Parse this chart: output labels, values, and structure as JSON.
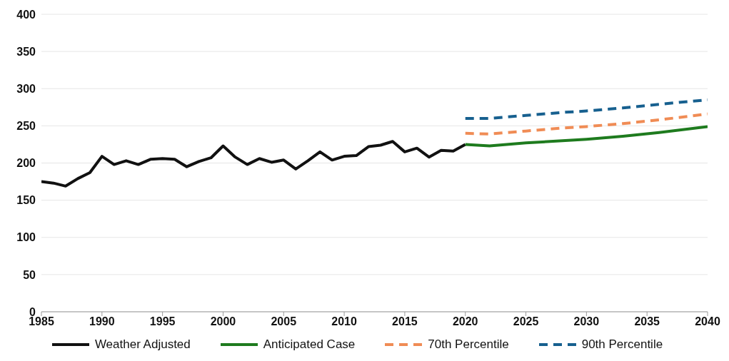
{
  "chart_data": {
    "type": "line",
    "x": [
      1985,
      1986,
      1987,
      1988,
      1989,
      1990,
      1991,
      1992,
      1993,
      1994,
      1995,
      1996,
      1997,
      1998,
      1999,
      2000,
      2001,
      2002,
      2003,
      2004,
      2005,
      2006,
      2007,
      2008,
      2009,
      2010,
      2011,
      2012,
      2013,
      2014,
      2015,
      2016,
      2017,
      2018,
      2019,
      2020
    ],
    "series": [
      {
        "name": "Weather Adjusted",
        "color": "#111111",
        "line_style": "solid",
        "values": [
          175,
          173,
          169,
          179,
          187,
          209,
          198,
          203,
          198,
          205,
          206,
          205,
          195,
          202,
          207,
          223,
          208,
          198,
          206,
          201,
          204,
          192,
          203,
          215,
          204,
          209,
          210,
          222,
          224,
          229,
          215,
          220,
          208,
          217,
          216,
          225
        ]
      },
      {
        "name": "Anticipated Case",
        "color": "#1e7b1e",
        "line_style": "solid",
        "x": [
          2020,
          2022,
          2025,
          2028,
          2030,
          2033,
          2036,
          2040
        ],
        "values": [
          225,
          223,
          227,
          230,
          232,
          236,
          241,
          249
        ]
      },
      {
        "name": "70th Percentile",
        "color": "#f08c55",
        "line_style": "dashed",
        "x": [
          2020,
          2022,
          2025,
          2028,
          2030,
          2033,
          2036,
          2040
        ],
        "values": [
          240,
          239,
          243,
          247,
          249,
          253,
          258,
          266
        ]
      },
      {
        "name": "90th Percentile",
        "color": "#17608f",
        "line_style": "dashed",
        "x": [
          2020,
          2022,
          2025,
          2028,
          2030,
          2033,
          2036,
          2040
        ],
        "values": [
          260,
          260,
          264,
          268,
          270,
          274,
          279,
          285
        ]
      }
    ],
    "xlim": [
      1985,
      2040
    ],
    "xticks": [
      1985,
      1990,
      1995,
      2000,
      2005,
      2010,
      2015,
      2020,
      2025,
      2030,
      2035,
      2040
    ],
    "ylim": [
      0,
      400
    ],
    "yticks": [
      0,
      50,
      100,
      150,
      200,
      250,
      300,
      350,
      400
    ],
    "grid": "y",
    "legend": "bottom",
    "marker": "none"
  }
}
